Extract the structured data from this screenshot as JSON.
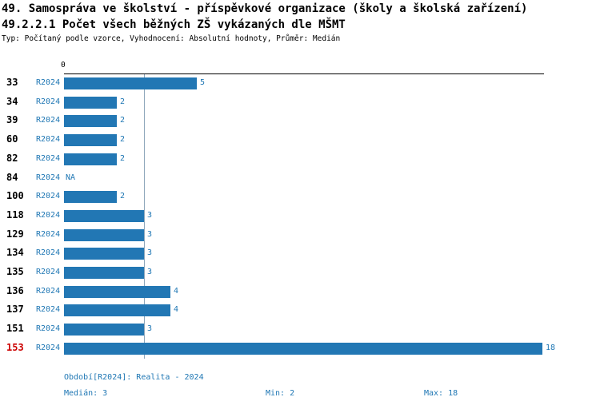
{
  "header": {
    "title": "49. Samospráva ve školství - příspěvkové organizace (školy a školská zařízení)",
    "subtitle": "49.2.2.1 Počet všech běžných ZŠ vykázaných dle MŠMT",
    "meta": "Typ: Počítaný podle vzorce, Vyhodnocení: Absolutní hodnoty, Průměr: Medián"
  },
  "chart_data": {
    "type": "bar",
    "orientation": "horizontal",
    "categories": [
      "33",
      "34",
      "39",
      "60",
      "82",
      "84",
      "100",
      "118",
      "129",
      "134",
      "135",
      "136",
      "137",
      "151",
      "153"
    ],
    "series": [
      {
        "name": "R2024",
        "values": [
          5,
          2,
          2,
          2,
          2,
          null,
          2,
          3,
          3,
          3,
          3,
          4,
          4,
          3,
          18
        ]
      }
    ],
    "value_labels": [
      "5",
      "2",
      "2",
      "2",
      "2",
      "NA",
      "2",
      "3",
      "3",
      "3",
      "3",
      "4",
      "4",
      "3",
      "18"
    ],
    "xlim": [
      0,
      18
    ],
    "x_axis_tick_labels": [
      "0"
    ],
    "median_reference_line": 3,
    "highlight_category": "153",
    "median": 3,
    "min": 2,
    "max": 18,
    "legend_position": "none",
    "grid": false
  },
  "footer": {
    "period": "Období[R2024]: Realita - 2024",
    "median_label": "Medián: 3",
    "min_label": "Min: 2",
    "max_label": "Max: 18"
  },
  "colors": {
    "bar_blue": "#2277b4",
    "text_blue": "#1f77b4",
    "highlight_red": "#cc0000",
    "median_line": "#8fa8bc",
    "axis_black": "#000000"
  }
}
